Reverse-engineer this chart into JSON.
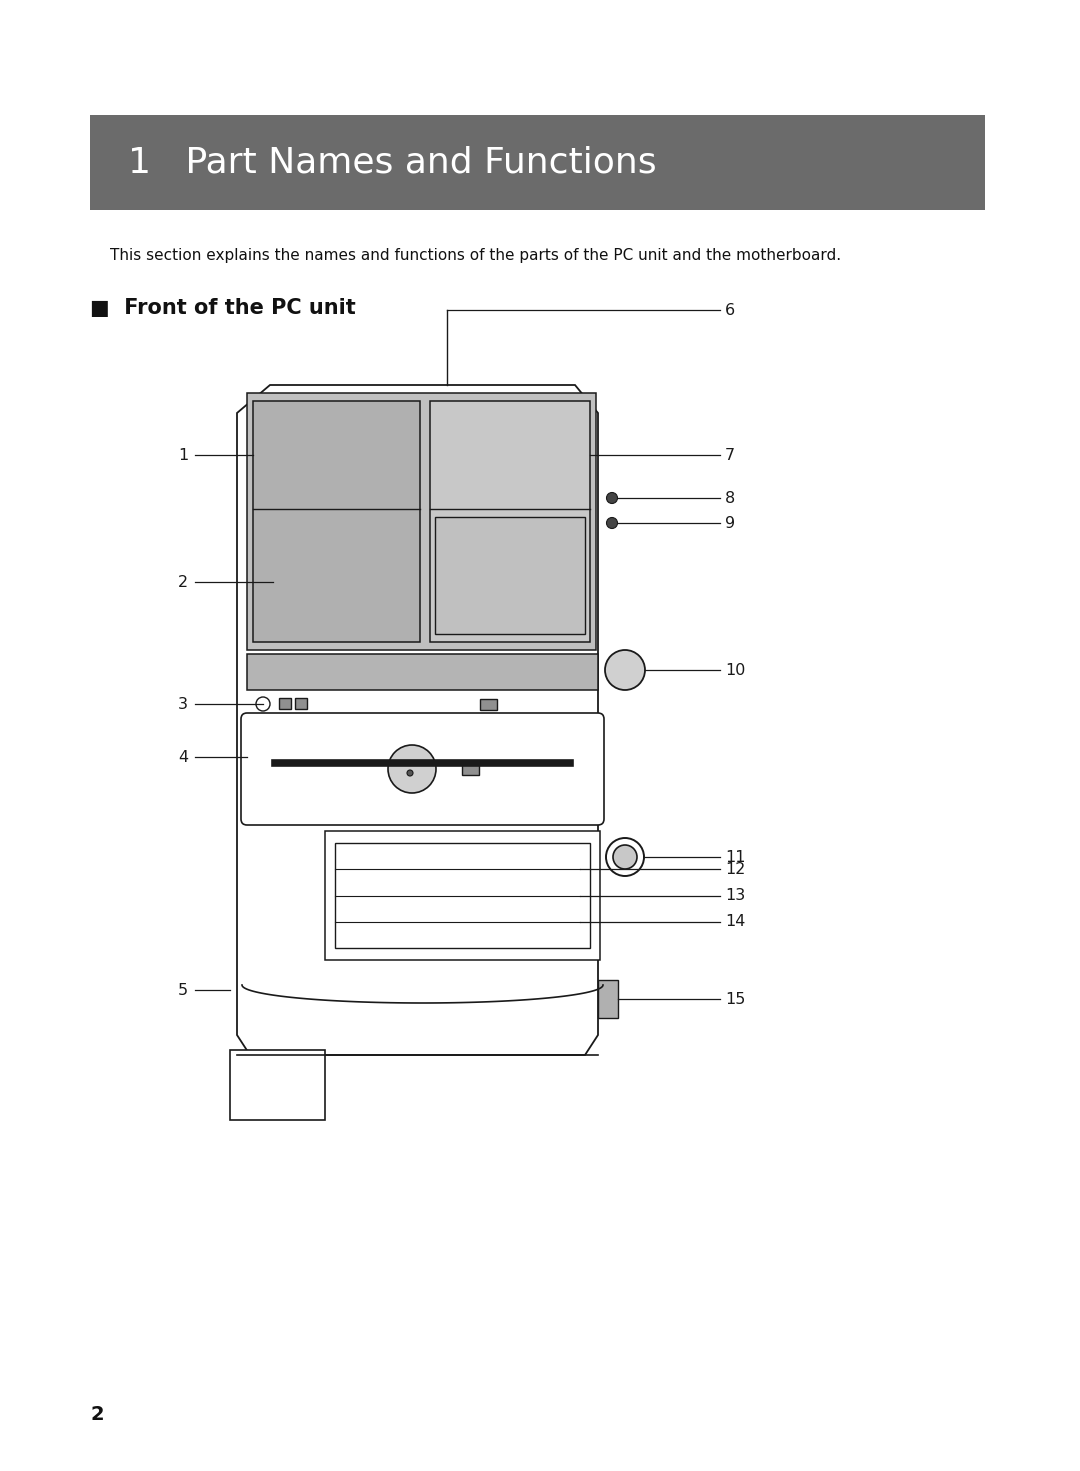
{
  "title_text": "1   Part Names and Functions",
  "title_bg_color": "#6b6b6b",
  "title_text_color": "#ffffff",
  "subtitle_text": "This section explains the names and functions of the parts of the PC unit and the motherboard.",
  "section_title": "■  Front of the PC unit",
  "page_number": "2",
  "bg_color": "#ffffff",
  "line_color": "#1a1a1a",
  "gray_fill": "#aaaaaa",
  "mid_gray": "#b8b8b8",
  "light_gray": "#cccccc"
}
